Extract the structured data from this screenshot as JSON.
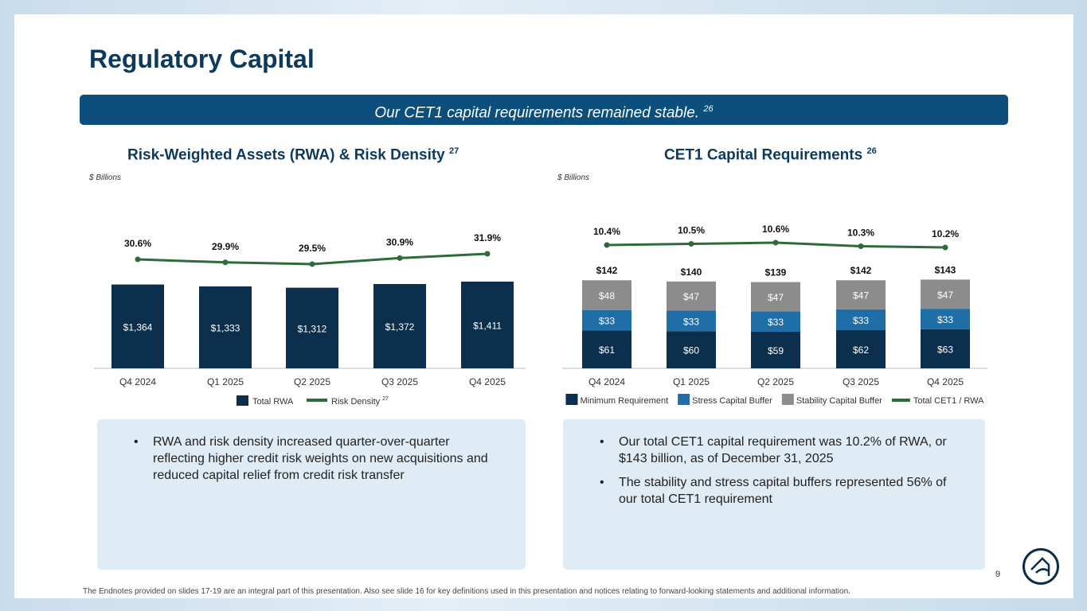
{
  "title": "Regulatory Capital",
  "banner": "Our CET1 capital requirements remained stable.",
  "banner_note": "26",
  "page_number": "9",
  "footer": "The Endnotes provided on slides 17-19 are an integral part of this presentation. Also see slide 16 for key definitions used in this presentation and notices relating to forward-looking statements and additional information.",
  "left_box": [
    "RWA and risk density increased quarter-over-quarter reflecting higher credit risk weights on new acquisitions and reduced capital relief from credit risk transfer"
  ],
  "right_box": [
    "Our total CET1 capital requirement was 10.2% of RWA, or $143 billion, as of December 31, 2025",
    "The stability and stress capital buffers represented 56% of our total CET1 requirement"
  ],
  "colors": {
    "navy": "#0b2f4c",
    "blue": "#1f6ea8",
    "gray": "#8c8c8c",
    "green": "#2e6b3a"
  },
  "chart_data": [
    {
      "type": "bar",
      "title": "Risk-Weighted Assets (RWA) & Risk Density",
      "title_note": "27",
      "unit": "$ Billions",
      "categories": [
        "Q4 2024",
        "Q1 2025",
        "Q2 2025",
        "Q3 2025",
        "Q4 2025"
      ],
      "series": [
        {
          "name": "Total RWA",
          "values": [
            1364,
            1333,
            1312,
            1372,
            1411
          ],
          "labels": [
            "$1,364",
            "$1,333",
            "$1,312",
            "$1,372",
            "$1,411"
          ]
        },
        {
          "name": "Risk Density",
          "name_note": "27",
          "type": "line",
          "values": [
            30.6,
            29.9,
            29.5,
            30.9,
            31.9
          ],
          "labels": [
            "30.6%",
            "29.9%",
            "29.5%",
            "30.9%",
            "31.9%"
          ]
        }
      ]
    },
    {
      "type": "bar",
      "stacked": true,
      "title": "CET1 Capital Requirements",
      "title_note": "26",
      "unit": "$ Billions",
      "categories": [
        "Q4 2024",
        "Q1 2025",
        "Q2 2025",
        "Q3 2025",
        "Q4 2025"
      ],
      "series": [
        {
          "name": "Minimum Requirement",
          "values": [
            61,
            60,
            59,
            62,
            63
          ]
        },
        {
          "name": "Stress Capital Buffer",
          "values": [
            33,
            33,
            33,
            33,
            33
          ]
        },
        {
          "name": "Stability Capital Buffer",
          "values": [
            48,
            47,
            47,
            47,
            47
          ]
        },
        {
          "name": "Total CET1 / RWA",
          "type": "line",
          "values": [
            10.4,
            10.5,
            10.6,
            10.3,
            10.2
          ],
          "labels": [
            "10.4%",
            "10.5%",
            "10.6%",
            "10.3%",
            "10.2%"
          ]
        }
      ],
      "totals": [
        "$142",
        "$140",
        "$139",
        "$142",
        "$143"
      ]
    }
  ]
}
